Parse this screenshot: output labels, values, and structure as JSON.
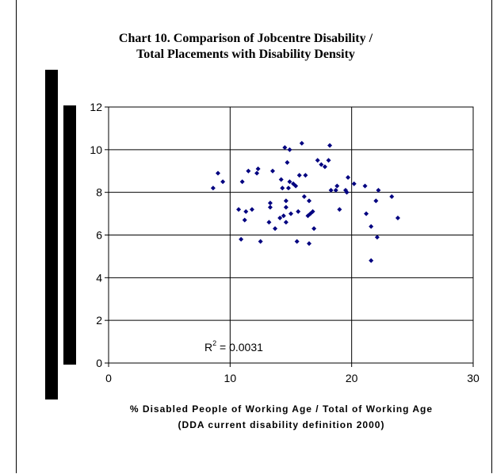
{
  "chart_data": {
    "type": "scatter",
    "title_line1": "Chart 10. Comparison of Jobcentre Disability /",
    "title_line2": "Total Placements with Disability Density",
    "xlabel_line1": "% Disabled People of Working Age / Total of Working Age",
    "xlabel_line2": "(DDA current disability definition 2000)",
    "ylabel": "",
    "xlim": [
      0,
      30
    ],
    "ylim": [
      0,
      12
    ],
    "x_ticks": [
      0,
      10,
      20,
      30
    ],
    "y_ticks": [
      0,
      2,
      4,
      6,
      8,
      10,
      12
    ],
    "grid": true,
    "marker_color": "#000080",
    "annotation_prefix": "R",
    "annotation_sup": "2",
    "annotation_suffix": " = 0.0031",
    "series": [
      {
        "points": [
          [
            8.6,
            8.2
          ],
          [
            9.0,
            8.9
          ],
          [
            9.4,
            8.5
          ],
          [
            10.7,
            7.2
          ],
          [
            10.9,
            5.8
          ],
          [
            11.0,
            8.5
          ],
          [
            11.2,
            6.7
          ],
          [
            11.3,
            7.1
          ],
          [
            11.5,
            9.0
          ],
          [
            11.8,
            7.2
          ],
          [
            12.2,
            8.9
          ],
          [
            12.3,
            9.1
          ],
          [
            12.5,
            5.7
          ],
          [
            13.2,
            6.6
          ],
          [
            13.3,
            7.5
          ],
          [
            13.3,
            7.3
          ],
          [
            13.5,
            9.0
          ],
          [
            13.7,
            6.3
          ],
          [
            14.1,
            6.8
          ],
          [
            14.2,
            8.6
          ],
          [
            14.3,
            8.2
          ],
          [
            14.4,
            6.9
          ],
          [
            14.5,
            10.1
          ],
          [
            14.6,
            7.6
          ],
          [
            14.6,
            7.3
          ],
          [
            14.6,
            6.6
          ],
          [
            14.7,
            9.4
          ],
          [
            14.8,
            8.2
          ],
          [
            14.9,
            10.0
          ],
          [
            14.9,
            8.5
          ],
          [
            15.0,
            7.0
          ],
          [
            15.2,
            8.4
          ],
          [
            15.4,
            8.3
          ],
          [
            15.5,
            5.7
          ],
          [
            15.6,
            7.1
          ],
          [
            15.7,
            8.8
          ],
          [
            15.9,
            10.3
          ],
          [
            16.1,
            7.8
          ],
          [
            16.2,
            8.8
          ],
          [
            16.4,
            6.9
          ],
          [
            16.5,
            7.6
          ],
          [
            16.5,
            5.6
          ],
          [
            16.6,
            7.0
          ],
          [
            16.8,
            7.1
          ],
          [
            16.9,
            6.3
          ],
          [
            17.2,
            9.5
          ],
          [
            17.5,
            9.3
          ],
          [
            17.8,
            9.2
          ],
          [
            18.1,
            9.5
          ],
          [
            18.2,
            10.2
          ],
          [
            18.3,
            8.1
          ],
          [
            18.7,
            8.1
          ],
          [
            18.8,
            8.3
          ],
          [
            19.0,
            7.2
          ],
          [
            19.5,
            8.1
          ],
          [
            19.6,
            8.0
          ],
          [
            19.7,
            8.7
          ],
          [
            20.2,
            8.4
          ],
          [
            21.1,
            8.3
          ],
          [
            21.2,
            7.0
          ],
          [
            21.6,
            6.4
          ],
          [
            21.6,
            4.8
          ],
          [
            22.0,
            7.6
          ],
          [
            22.1,
            5.9
          ],
          [
            22.2,
            8.1
          ],
          [
            23.3,
            7.8
          ],
          [
            23.8,
            6.8
          ]
        ]
      }
    ]
  }
}
